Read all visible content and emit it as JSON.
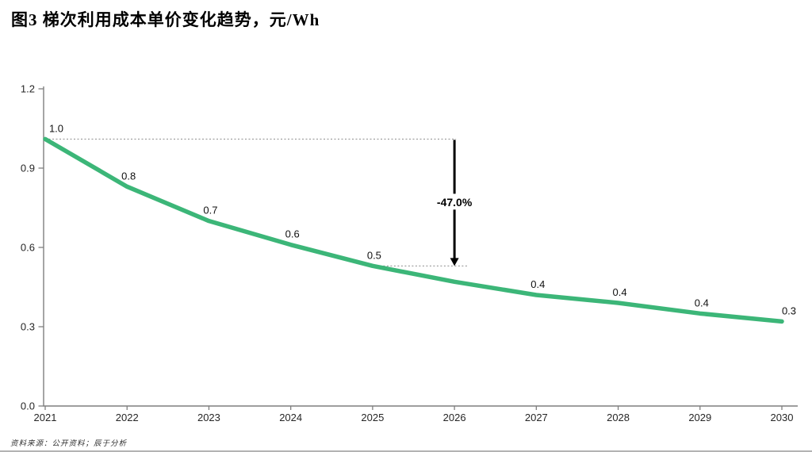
{
  "source_note": "资料来源：公开资料；辰于分析",
  "chart_data": {
    "type": "line",
    "title": "图3 梯次利用成本单价变化趋势，元/Wh",
    "x": [
      2021,
      2022,
      2023,
      2024,
      2025,
      2026,
      2027,
      2028,
      2029,
      2030
    ],
    "values": [
      1.01,
      0.83,
      0.7,
      0.61,
      0.53,
      0.47,
      0.42,
      0.39,
      0.35,
      0.32
    ],
    "point_labels": [
      "1.0",
      "0.8",
      "0.7",
      "0.6",
      "0.5",
      "",
      "0.4",
      "0.4",
      "0.4",
      "0.3"
    ],
    "ylim": [
      0,
      1.2
    ],
    "yticks": [
      1.2,
      0.9,
      0.6,
      0.3,
      0.0
    ],
    "ytick_labels": [
      "1.2",
      "0.9",
      "0.6",
      "0.3",
      "0.0"
    ],
    "xlabel": "",
    "ylabel": "",
    "grid": false,
    "legend": "none",
    "line_color": "#3cb678",
    "axis_color": "#7f7f7f",
    "annotation": {
      "label": "-47.0%",
      "arrow_x_index": 5,
      "top_value": 1.0,
      "bottom_value": 0.53,
      "top_line_start_index": 0,
      "bottom_line_start_index": 4,
      "arrow_color": "#000000",
      "dotted_color": "#8c8c8c"
    }
  }
}
